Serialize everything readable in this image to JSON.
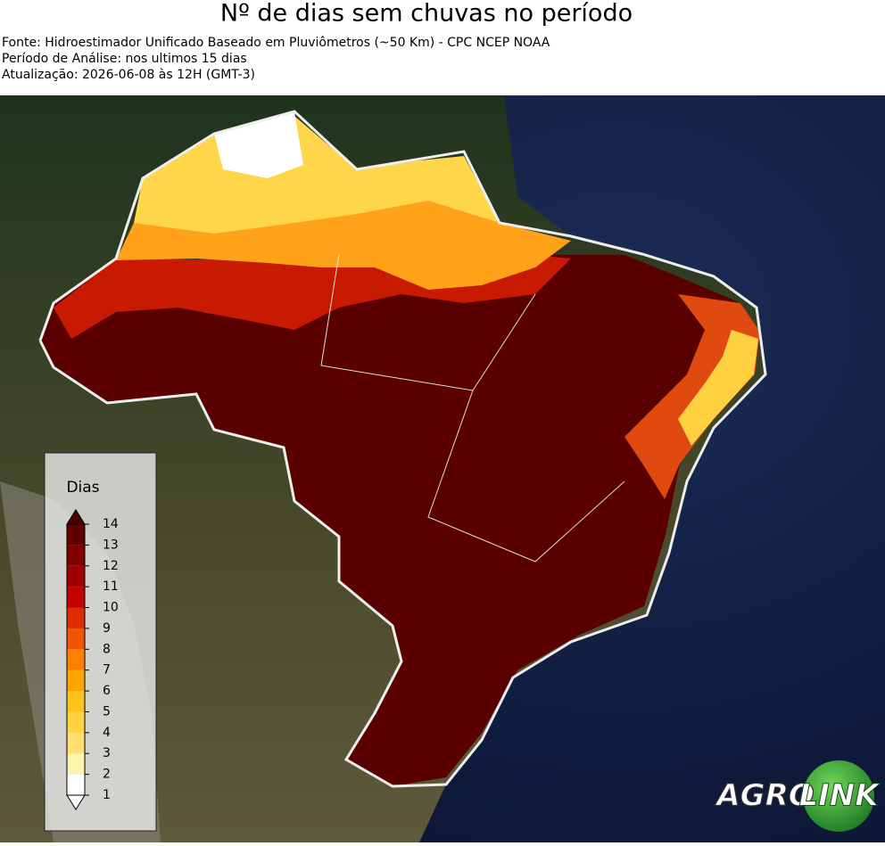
{
  "header": {
    "title": "Nº de dias sem chuvas no período",
    "lines": [
      "Fonte: Hidroestimador Unificado Baseado em Pluviômetros (~50 Km) - CPC NCEP NOAA",
      "Período de Análise: nos ultimos 15 dias",
      "Atualização: 2026-06-08 às 12H (GMT-3)"
    ]
  },
  "colorbar": {
    "label": "Dias",
    "ticks": [
      1,
      2,
      3,
      4,
      5,
      6,
      7,
      8,
      9,
      10,
      11,
      12,
      13,
      14
    ],
    "colors": [
      "#ffffff",
      "#fff3b0",
      "#ffe070",
      "#ffd23f",
      "#ffc21a",
      "#ffa500",
      "#ff8000",
      "#f25500",
      "#e02a00",
      "#c40000",
      "#a00000",
      "#800000",
      "#600000"
    ],
    "under_color": "#ffffff",
    "over_color": "#4a0000"
  },
  "logo": {
    "left": "AGRO",
    "right": "LINK"
  }
}
